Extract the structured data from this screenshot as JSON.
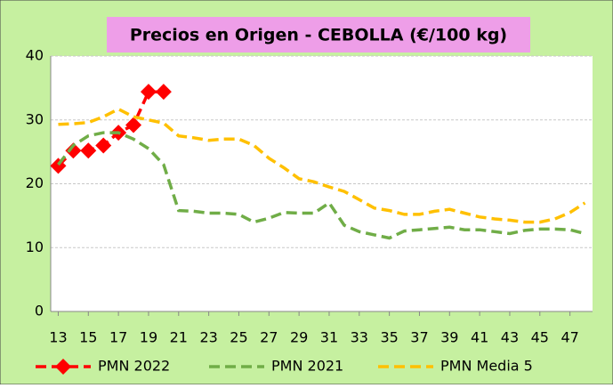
{
  "chart_data": {
    "type": "line",
    "title": "Precios en Origen - CEBOLLA (€/100 kg)",
    "x": [
      13,
      14,
      15,
      16,
      17,
      18,
      19,
      20,
      21,
      22,
      23,
      24,
      25,
      26,
      27,
      28,
      29,
      30,
      31,
      32,
      33,
      34,
      35,
      36,
      37,
      38,
      39,
      40,
      41,
      42,
      43,
      44,
      45,
      46,
      47,
      48
    ],
    "xlim": [
      12.5,
      48.5
    ],
    "xticks": [
      13,
      15,
      17,
      19,
      21,
      23,
      25,
      27,
      29,
      31,
      33,
      35,
      37,
      39,
      41,
      43,
      45,
      47
    ],
    "ylim": [
      0,
      40
    ],
    "yticks": [
      0,
      10,
      20,
      30,
      40
    ],
    "grid": true,
    "legend": "bottom",
    "series": [
      {
        "name": "PMN 2022",
        "color": "#ff0000",
        "values": [
          22.8,
          25.2,
          25.2,
          26,
          28,
          29.2,
          34.4,
          34.4,
          null,
          null,
          null,
          null,
          null,
          null,
          null,
          null,
          null,
          null,
          null,
          null,
          null,
          null,
          null,
          null,
          null,
          null,
          null,
          null,
          null,
          null,
          null,
          null,
          null,
          null,
          null,
          null
        ]
      },
      {
        "name": "PMN 2021",
        "color": "#70ad47",
        "values": [
          23,
          26,
          27.5,
          28,
          28,
          27,
          25.5,
          23,
          15.8,
          15.7,
          15.4,
          15.4,
          15.2,
          14,
          14.6,
          15.5,
          15.4,
          15.4,
          17,
          13.5,
          12.5,
          12,
          11.5,
          12.6,
          12.8,
          13,
          13.2,
          12.8,
          12.8,
          12.5,
          12.2,
          12.7,
          12.9,
          12.9,
          12.8,
          12.2
        ]
      },
      {
        "name": "PMN Media 5",
        "color": "#ffc000",
        "values": [
          29.3,
          29.4,
          29.6,
          30.5,
          31.7,
          30.5,
          30,
          29.5,
          27.5,
          27.2,
          26.8,
          27,
          27,
          26,
          24,
          22.5,
          20.8,
          20.3,
          19.5,
          18.8,
          17.5,
          16.2,
          15.8,
          15.2,
          15.2,
          15.7,
          16,
          15.4,
          14.8,
          14.5,
          14.3,
          14,
          14,
          14.5,
          15.5,
          17
        ]
      }
    ]
  }
}
